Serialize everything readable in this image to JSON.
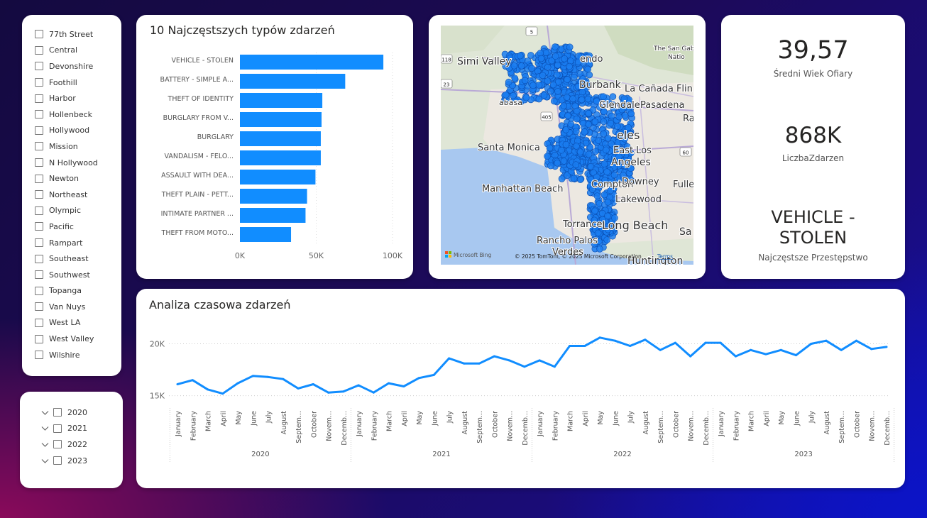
{
  "district_slicer": {
    "items": [
      "77th Street",
      "Central",
      "Devonshire",
      "Foothill",
      "Harbor",
      "Hollenbeck",
      "Hollywood",
      "Mission",
      "N Hollywood",
      "Newton",
      "Northeast",
      "Olympic",
      "Pacific",
      "Rampart",
      "Southeast",
      "Southwest",
      "Topanga",
      "Van Nuys",
      "West LA",
      "West Valley",
      "Wilshire"
    ]
  },
  "year_slicer": {
    "items": [
      "2020",
      "2021",
      "2022",
      "2023"
    ]
  },
  "bar_chart": {
    "title": "10 Najczęstszych typów zdarzeń",
    "bar_color": "#118DFF",
    "chart_data": {
      "type": "bar",
      "orientation": "horizontal",
      "categories": [
        "VEHICLE - STOLEN",
        "BATTERY - SIMPLE A...",
        "THEFT OF IDENTITY",
        "BURGLARY FROM V...",
        "BURGLARY",
        "VANDALISM - FELO...",
        "ASSAULT WITH DEA...",
        "THEFT PLAIN - PETT...",
        "INTIMATE PARTNER ...",
        "THEFT FROM MOTO..."
      ],
      "values": [
        94000,
        69000,
        54000,
        53500,
        53000,
        53000,
        49500,
        44000,
        43000,
        33500
      ],
      "xticks": [
        "0K",
        "50K",
        "100K"
      ],
      "xlim": [
        0,
        100000
      ]
    }
  },
  "map": {
    "labels": [
      "Simi Valley",
      "Burbank",
      "La Cañada Flin",
      "Glendale",
      "Pasadena",
      "Santa Monica",
      "East Los",
      "Angeles",
      "Manhattan Beach",
      "Compton",
      "Downey",
      "Fulle",
      "Torrance",
      "Lakewood",
      "Long Beach",
      "Rancho Palos",
      "Verdes",
      "The San Gab",
      "Natio",
      "Sa",
      "Huntington",
      "eles",
      "Ra",
      "endo",
      "abasa"
    ],
    "attribution": "© 2025 TomTom, © 2025 Microsoft Corporation",
    "terms": "Terms",
    "bing": "Microsoft Bing",
    "shields": [
      "118",
      "5",
      "23",
      "405",
      "60"
    ],
    "point_color": "#1a7cf0"
  },
  "kpis": {
    "avg_age": {
      "value": "39,57",
      "label": "Średni Wiek Ofiary"
    },
    "count": {
      "value": "868K",
      "label": "LiczbaZdarzen"
    },
    "top_crime": {
      "value_line1": "VEHICLE -",
      "value_line2": "STOLEN",
      "label": "Najczęstsze Przestępstwo"
    }
  },
  "line_chart": {
    "title": "Analiza czasowa zdarzeń",
    "line_color": "#118DFF",
    "chart_data": {
      "type": "line",
      "ylim": [
        14700,
        21200
      ],
      "yticks": [
        {
          "label": "20K",
          "value": 20000
        },
        {
          "label": "15K",
          "value": 15000
        }
      ],
      "month_labels": [
        "January",
        "February",
        "March",
        "April",
        "May",
        "June",
        "July",
        "August",
        "Septem...",
        "October",
        "Novem...",
        "Decemb..."
      ],
      "years": [
        "2020",
        "2021",
        "2022",
        "2023"
      ],
      "series": [
        {
          "values": [
            16100,
            16500,
            15600,
            15200,
            16200,
            16900,
            16800,
            16600,
            15700,
            16100,
            15300,
            15400,
            16000,
            15300,
            16200,
            15900,
            16700,
            17000,
            18600,
            18100,
            18100,
            18800,
            18400,
            17800,
            18400,
            17800,
            19800,
            19800,
            20600,
            20300,
            19800,
            20400,
            19400,
            20100,
            18800,
            20100,
            20100,
            18800,
            19400,
            19000,
            19400,
            18900,
            20000,
            20300,
            19400,
            20300,
            19500,
            19700
          ]
        }
      ]
    }
  }
}
